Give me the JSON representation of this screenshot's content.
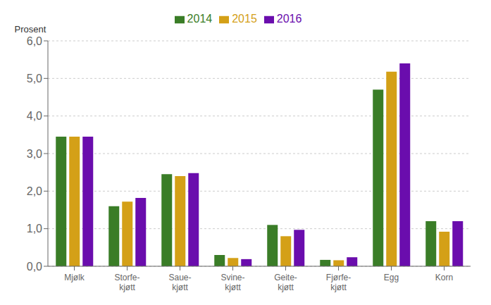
{
  "chart_data": {
    "type": "bar",
    "categories": [
      "Mjølk",
      "Storfe-\nkjøtt",
      "Saue-\nkjøtt",
      "Svine-\nkjøtt",
      "Geite-\nkjøtt",
      "Fjørfe-\nkjøtt",
      "Egg",
      "Korn"
    ],
    "series": [
      {
        "name": "2014",
        "color": "#3a7d27",
        "values": [
          3.45,
          1.6,
          2.45,
          0.3,
          1.1,
          0.17,
          4.7,
          1.2
        ]
      },
      {
        "name": "2015",
        "color": "#d4a017",
        "values": [
          3.45,
          1.72,
          2.4,
          0.22,
          0.8,
          0.16,
          5.18,
          0.92
        ]
      },
      {
        "name": "2016",
        "color": "#6a0dad",
        "values": [
          3.45,
          1.82,
          2.48,
          0.19,
          0.97,
          0.24,
          5.4,
          1.2
        ]
      }
    ],
    "ylabel": "Prosent",
    "ylim": [
      0,
      6.0
    ],
    "yticks": [
      {
        "value": 0.0,
        "label": "0,0"
      },
      {
        "value": 1.0,
        "label": "1,0"
      },
      {
        "value": 2.0,
        "label": "2,0"
      },
      {
        "value": 3.0,
        "label": "3,0"
      },
      {
        "value": 4.0,
        "label": "4,0"
      },
      {
        "value": 5.0,
        "label": "5,0"
      },
      {
        "value": 6.0,
        "label": "6,0"
      }
    ],
    "grid": true,
    "legend": "top"
  }
}
